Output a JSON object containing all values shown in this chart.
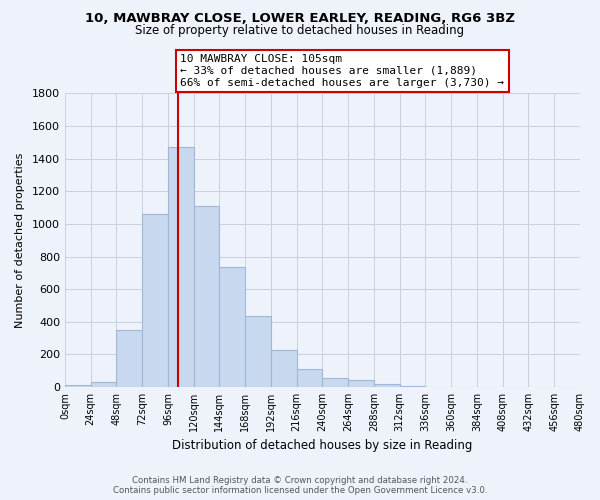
{
  "title": "10, MAWBRAY CLOSE, LOWER EARLEY, READING, RG6 3BZ",
  "subtitle": "Size of property relative to detached houses in Reading",
  "xlabel": "Distribution of detached houses by size in Reading",
  "ylabel": "Number of detached properties",
  "bin_edges": [
    0,
    24,
    48,
    72,
    96,
    120,
    144,
    168,
    192,
    216,
    240,
    264,
    288,
    312,
    336,
    360,
    384,
    408,
    432,
    456,
    480
  ],
  "bar_heights": [
    15,
    30,
    350,
    1060,
    1470,
    1110,
    735,
    435,
    230,
    110,
    55,
    45,
    20,
    5,
    3,
    2,
    1,
    0,
    0,
    0
  ],
  "bar_color": "#c8d8ee",
  "bar_edge_color": "#a0b8d8",
  "grid_color": "#c8d0dc",
  "vline_x": 105,
  "vline_color": "#cc0000",
  "annotation_title": "10 MAWBRAY CLOSE: 105sqm",
  "annotation_line1": "← 33% of detached houses are smaller (1,889)",
  "annotation_line2": "66% of semi-detached houses are larger (3,730) →",
  "annotation_box_color": "#ffffff",
  "annotation_box_edge": "#cc0000",
  "footer_line1": "Contains HM Land Registry data © Crown copyright and database right 2024.",
  "footer_line2": "Contains public sector information licensed under the Open Government Licence v3.0.",
  "ylim": [
    0,
    1800
  ],
  "yticks": [
    0,
    200,
    400,
    600,
    800,
    1000,
    1200,
    1400,
    1600,
    1800
  ],
  "xtick_labels": [
    "0sqm",
    "24sqm",
    "48sqm",
    "72sqm",
    "96sqm",
    "120sqm",
    "144sqm",
    "168sqm",
    "192sqm",
    "216sqm",
    "240sqm",
    "264sqm",
    "288sqm",
    "312sqm",
    "336sqm",
    "360sqm",
    "384sqm",
    "408sqm",
    "432sqm",
    "456sqm",
    "480sqm"
  ],
  "bg_color": "#eef2fb"
}
